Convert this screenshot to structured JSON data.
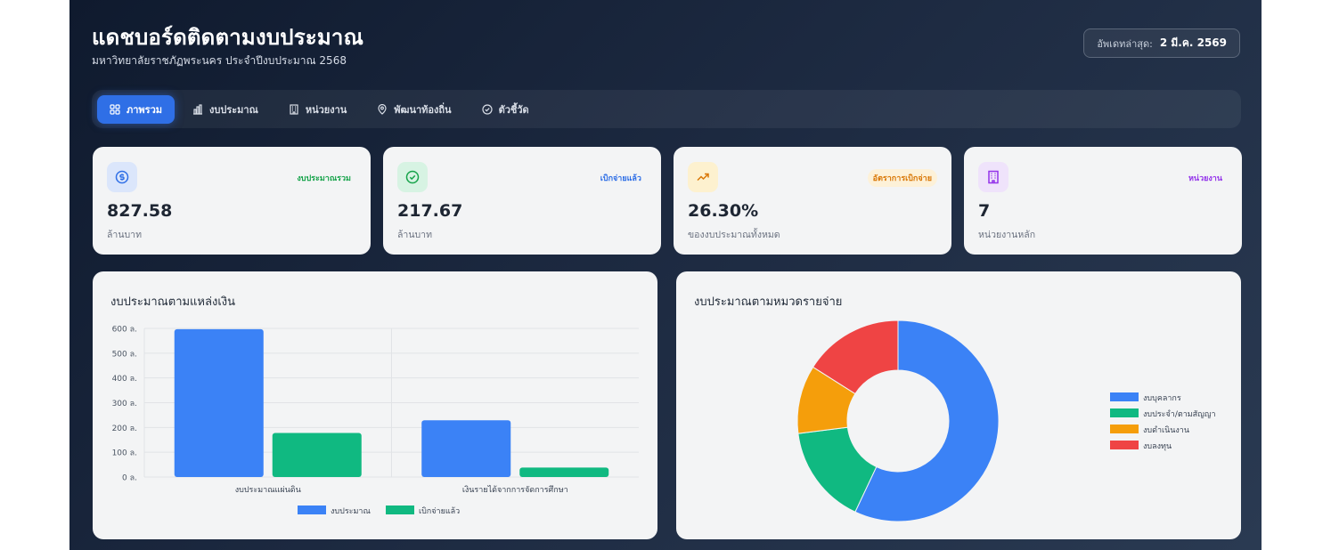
{
  "header": {
    "title": "แดชบอร์ดติดตามงบประมาณ",
    "subtitle": "มหาวิทยาลัยราชภัฏพระนคร ประจำปีงบประมาณ 2568",
    "update_label": "อัพเดทล่าสุด:",
    "update_value": "2 มี.ค. 2569"
  },
  "nav": {
    "tabs": [
      {
        "label": "ภาพรวม",
        "icon": "grid-icon",
        "active": true
      },
      {
        "label": "งบประมาณ",
        "icon": "bar-chart-icon",
        "active": false
      },
      {
        "label": "หน่วยงาน",
        "icon": "building-icon",
        "active": false
      },
      {
        "label": "พัฒนาท้องถิ่น",
        "icon": "map-pin-icon",
        "active": false
      },
      {
        "label": "ตัวชี้วัด",
        "icon": "check-circle-icon",
        "active": false
      }
    ]
  },
  "stats": [
    {
      "badge": "งบประมาณรวม",
      "value": "827.58",
      "unit": "ล้านบาท",
      "icon": "dollar-icon",
      "color": "#2f6fe6",
      "bg": "#dbe6fb",
      "badge_color": "#16a34a"
    },
    {
      "badge": "เบิกจ่ายแล้ว",
      "value": "217.67",
      "unit": "ล้านบาท",
      "icon": "check-circle-icon",
      "color": "#16a34a",
      "bg": "#d7f3e3",
      "badge_color": "#2f6fe6"
    },
    {
      "badge": "อัตราการเบิกจ่าย",
      "value": "26.30%",
      "unit": "ของงบประมาณทั้งหมด",
      "icon": "trending-up-icon",
      "color": "#d97706",
      "bg": "#fdf1cf",
      "badge_color": "#d97706"
    },
    {
      "badge": "หน่วยงาน",
      "value": "7",
      "unit": "หน่วยงานหลัก",
      "icon": "building-icon",
      "color": "#9333ea",
      "bg": "#efe3fb",
      "badge_color": "#9333ea"
    }
  ],
  "bar_panel": {
    "title": "งบประมาณตามแหล่งเงิน"
  },
  "donut_panel": {
    "title": "งบประมาณตามหมวดรายจ่าย"
  },
  "chart_data": [
    {
      "type": "bar",
      "title": "งบประมาณตามแหล่งเงิน",
      "categories": [
        "งบประมาณแผ่นดิน",
        "เงินรายได้จากการจัดการศึกษา"
      ],
      "series": [
        {
          "name": "งบประมาณ",
          "values": [
            597,
            229
          ],
          "color": "#3b82f6"
        },
        {
          "name": "เบิกจ่ายแล้ว",
          "values": [
            178,
            38
          ],
          "color": "#10b981"
        }
      ],
      "yticks": [
        "600 ล.",
        "500 ล.",
        "400 ล.",
        "300 ล.",
        "200 ล.",
        "100 ล.",
        "0 ล."
      ],
      "ylim": [
        0,
        600
      ],
      "grid": true,
      "legend": "bottom"
    },
    {
      "type": "pie",
      "title": "งบประมาณตามหมวดรายจ่าย",
      "donut": true,
      "labels": [
        "งบบุคลากร",
        "งบประจำ/ตามสัญญา",
        "งบดำเนินงาน",
        "งบลงทุน"
      ],
      "values": [
        57,
        16,
        11,
        16
      ],
      "colors": [
        "#3b82f6",
        "#10b981",
        "#f59e0b",
        "#ef4444"
      ],
      "legend": "right"
    }
  ]
}
